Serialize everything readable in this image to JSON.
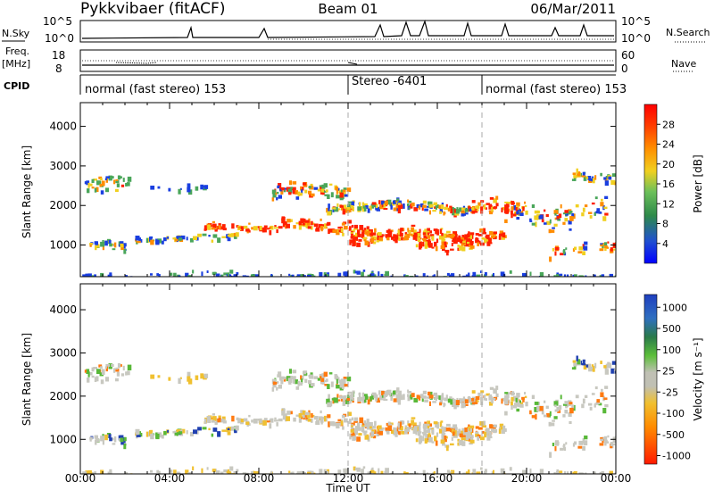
{
  "header": {
    "station": "Pykkvibaer (fitACF)",
    "beam": "Beam 01",
    "date": "06/Mar/2011"
  },
  "panels": {
    "nsky_label": "N.Sky",
    "nsky_left_ticks": [
      "10^5",
      "10^0"
    ],
    "nsky_right_ticks": [
      "10^5",
      "10^0"
    ],
    "nsearch_label": "N.Search",
    "freq_label_1": "Freq.",
    "freq_label_2": "[MHz]",
    "freq_left_ticks": [
      "18",
      "8"
    ],
    "freq_right_ticks": [
      "60",
      "0"
    ],
    "nave_label": "Nave",
    "cpid_label": "CPID",
    "cpid_segments": [
      {
        "start": "00:00",
        "end": "12:00",
        "text": "normal (fast stereo) 153"
      },
      {
        "start": "12:00",
        "end": "18:00",
        "text": "Stereo -6401"
      },
      {
        "start": "18:00",
        "end": "24:00",
        "text": "normal (fast stereo) 153"
      }
    ]
  },
  "chart_data": [
    {
      "type": "heatmap",
      "name": "power",
      "ylabel": "Slant Range [km]",
      "yticks": [
        1000,
        2000,
        3000,
        4000
      ],
      "ylim": [
        200,
        4600
      ],
      "xlim": [
        "00:00",
        "24:00"
      ],
      "colorbar": {
        "label": "Power [dB]",
        "ticks": [
          "4",
          "8",
          "12",
          "16",
          "20",
          "24",
          "28"
        ],
        "colors": [
          "#0022ff",
          "#2244dd",
          "#2e7d4f",
          "#5fbf5a",
          "#f0d020",
          "#ff8c00",
          "#ff4500",
          "#ff0000"
        ]
      }
    },
    {
      "type": "heatmap",
      "name": "velocity",
      "ylabel": "Slant Range [km]",
      "yticks": [
        1000,
        2000,
        3000,
        4000
      ],
      "ylim": [
        200,
        4600
      ],
      "xlim": [
        "00:00",
        "24:00"
      ],
      "xlabel": "Time UT",
      "xticks": [
        "00:00",
        "04:00",
        "08:00",
        "12:00",
        "16:00",
        "20:00",
        "00:00"
      ],
      "colorbar": {
        "label": "Velocity [m s⁻¹]",
        "ticks": [
          "1000",
          "500",
          "100",
          "25",
          "-25",
          "-100",
          "-500",
          "-1000"
        ],
        "colors": [
          "#1f3fbf",
          "#2a7a4a",
          "#5cbf3a",
          "#bfbfb0",
          "#bdbdb5",
          "#f0c030",
          "#ff8c00",
          "#ff2a00"
        ]
      }
    }
  ],
  "colors": {
    "power_red": "#ff2000",
    "power_orange": "#ff8c00",
    "power_yellow": "#f0d020",
    "power_green": "#4aa65a",
    "power_blue": "#1a3fe0",
    "vel_gray": "#c8c8c0",
    "vel_orange": "#ff7a10",
    "vel_yellow": "#f0c030",
    "vel_green": "#58b838",
    "vel_blue": "#2040b0"
  }
}
